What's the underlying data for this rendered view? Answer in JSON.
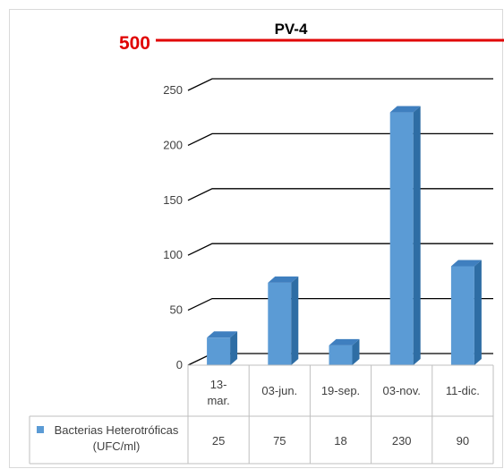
{
  "chart_data": {
    "type": "bar",
    "title": "PV-4",
    "threshold": {
      "value": 500,
      "label": "500",
      "color": "#e00000"
    },
    "ylim": [
      0,
      250
    ],
    "yticks": [
      0,
      50,
      100,
      150,
      200,
      250
    ],
    "ytick_labels": [
      "0",
      "50",
      "100",
      "150",
      "200",
      "250"
    ],
    "categories": [
      [
        "13-",
        "mar."
      ],
      [
        "03-jun."
      ],
      [
        "19-sep."
      ],
      [
        "03-nov."
      ],
      [
        "11-dic."
      ]
    ],
    "series": [
      {
        "name_lines": [
          "Bacterias Heterotróficas",
          "(UFC/ml)"
        ],
        "values": [
          25,
          75,
          18,
          230,
          90
        ],
        "value_labels": [
          "25",
          "75",
          "18",
          "230",
          "90"
        ],
        "color": "#5b9bd5"
      }
    ],
    "grid": true,
    "legend": "data-table"
  }
}
